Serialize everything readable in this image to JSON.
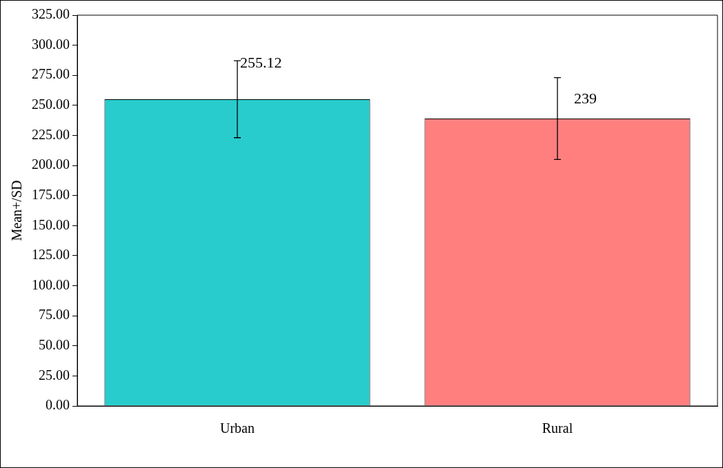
{
  "chart_data": {
    "type": "bar",
    "ylabel": "Mean+/SD",
    "categories": [
      "Urban",
      "Rural"
    ],
    "values": [
      255.12,
      239
    ],
    "colors": [
      "#29cccc",
      "#ff7f7f"
    ],
    "errors": [
      32,
      34
    ],
    "data_labels": true,
    "grid": false,
    "legend": false,
    "ylim": [
      0,
      325
    ],
    "yticks": [
      {
        "value": 0,
        "label": "0.00"
      },
      {
        "value": 25,
        "label": "25.00"
      },
      {
        "value": 50,
        "label": "50.00"
      },
      {
        "value": 75,
        "label": "75.00"
      },
      {
        "value": 100,
        "label": "100.00"
      },
      {
        "value": 125,
        "label": "125.00"
      },
      {
        "value": 150,
        "label": "150.00"
      },
      {
        "value": 175,
        "label": "175.00"
      },
      {
        "value": 200,
        "label": "200.00"
      },
      {
        "value": 225,
        "label": "225.00"
      },
      {
        "value": 250,
        "label": "250.00"
      },
      {
        "value": 275,
        "label": "275.00"
      },
      {
        "value": 300,
        "label": "300.00"
      },
      {
        "value": 325,
        "label": "325.00"
      }
    ]
  }
}
